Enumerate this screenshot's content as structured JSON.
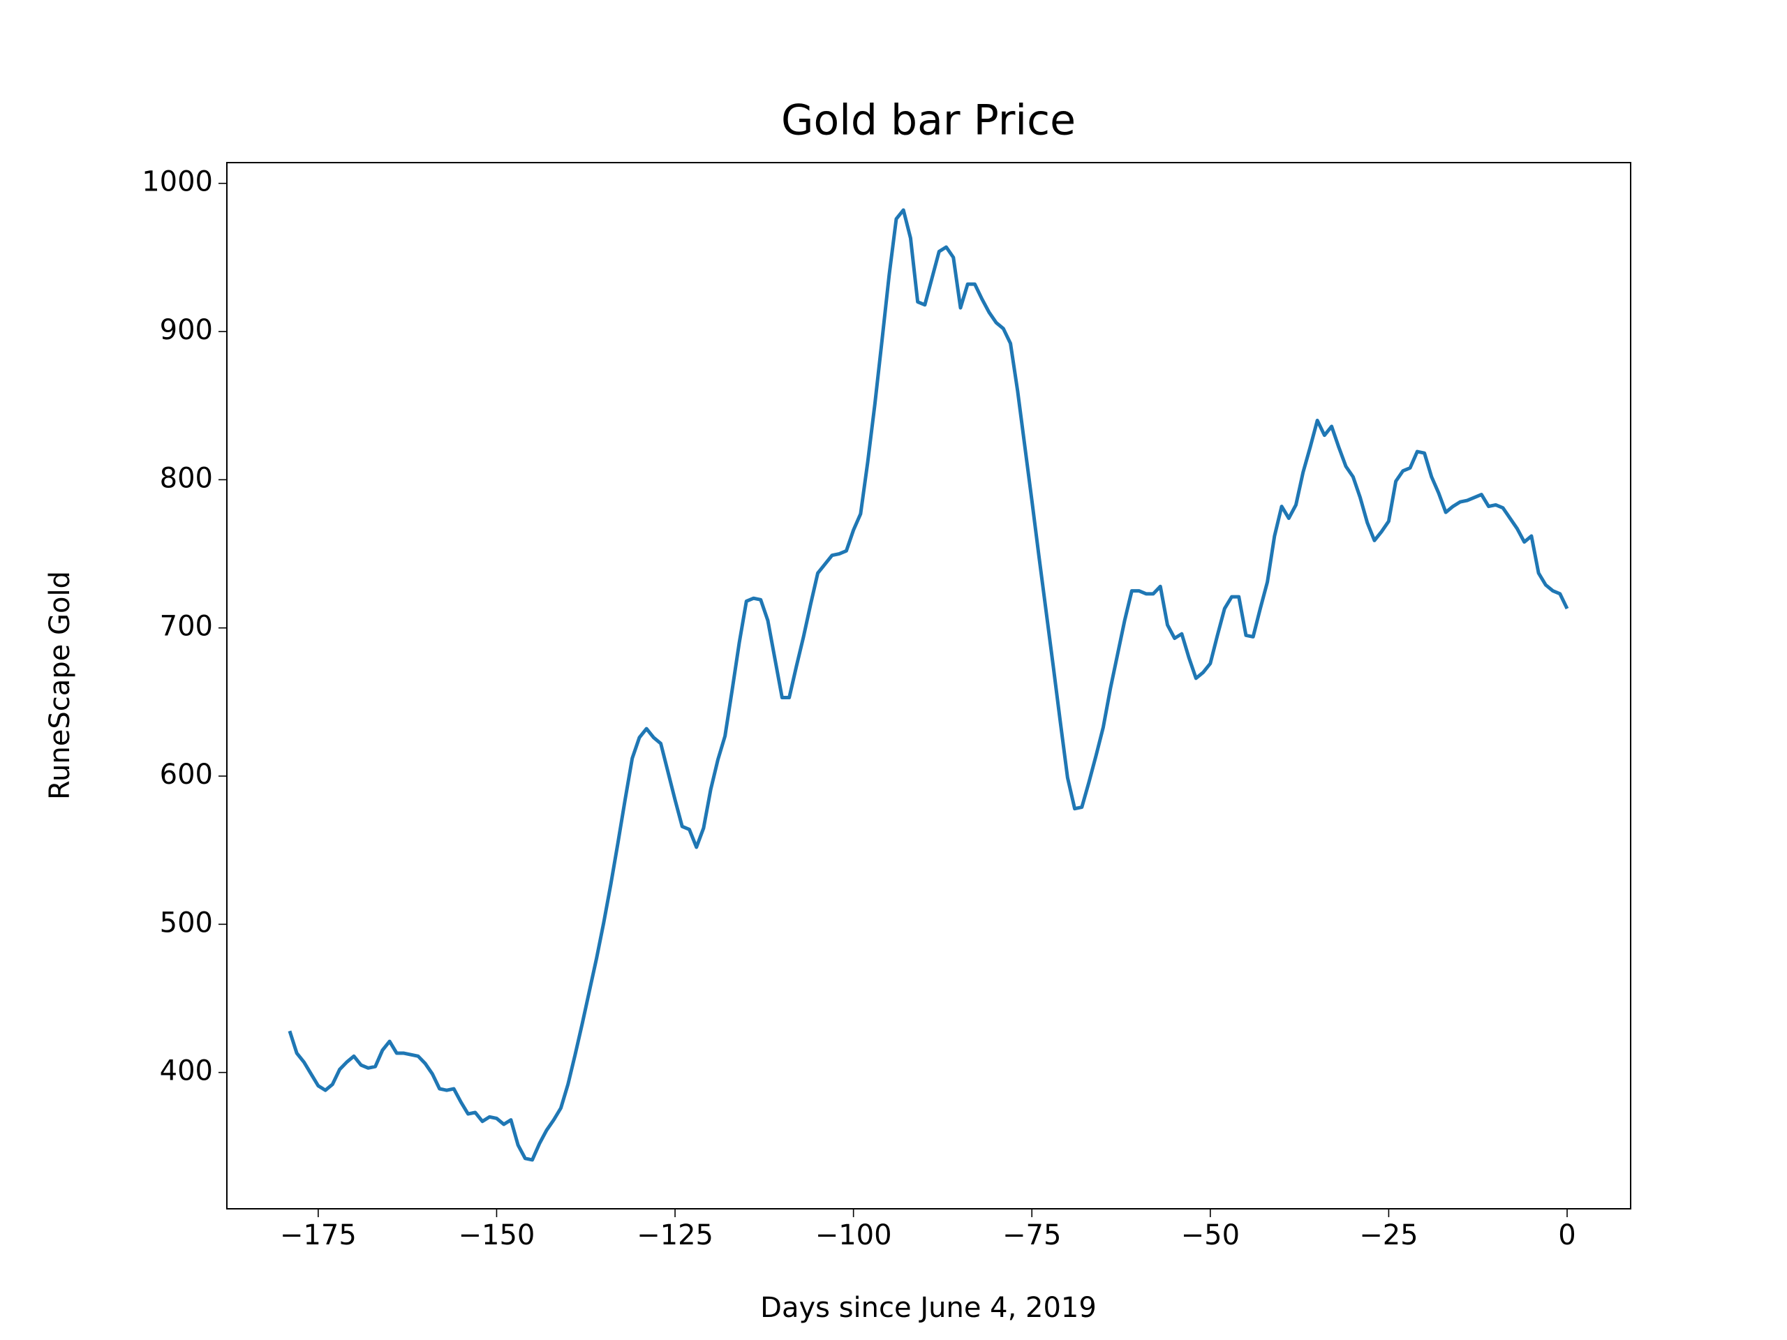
{
  "chart_data": {
    "type": "line",
    "title": "Gold bar Price",
    "x_label": "Days since June 4, 2019",
    "y_label": "RuneScape Gold",
    "x": [
      -179,
      -178,
      -177,
      -176,
      -175,
      -174,
      -173,
      -172,
      -171,
      -170,
      -169,
      -168,
      -167,
      -166,
      -165,
      -164,
      -163,
      -162,
      -161,
      -160,
      -159,
      -158,
      -157,
      -156,
      -155,
      -154,
      -153,
      -152,
      -151,
      -150,
      -149,
      -148,
      -147,
      -146,
      -145,
      -144,
      -143,
      -142,
      -141,
      -140,
      -139,
      -138,
      -137,
      -136,
      -135,
      -134,
      -133,
      -132,
      -131,
      -130,
      -129,
      -128,
      -127,
      -126,
      -125,
      -124,
      -123,
      -122,
      -121,
      -120,
      -119,
      -118,
      -117,
      -116,
      -115,
      -114,
      -113,
      -112,
      -111,
      -110,
      -109,
      -108,
      -107,
      -106,
      -105,
      -104,
      -103,
      -102,
      -101,
      -100,
      -99,
      -98,
      -97,
      -96,
      -95,
      -94,
      -93,
      -92,
      -91,
      -90,
      -89,
      -88,
      -87,
      -86,
      -85,
      -84,
      -83,
      -82,
      -81,
      -80,
      -79,
      -78,
      -77,
      -76,
      -75,
      -74,
      -73,
      -72,
      -71,
      -70,
      -69,
      -68,
      -67,
      -66,
      -65,
      -64,
      -63,
      -62,
      -61,
      -60,
      -59,
      -58,
      -57,
      -56,
      -55,
      -54,
      -53,
      -52,
      -51,
      -50,
      -49,
      -48,
      -47,
      -46,
      -45,
      -44,
      -43,
      -42,
      -41,
      -40,
      -39,
      -38,
      -37,
      -36,
      -35,
      -34,
      -33,
      -32,
      -31,
      -30,
      -29,
      -28,
      -27,
      -26,
      -25,
      -24,
      -23,
      -22,
      -21,
      -20,
      -19,
      -18,
      -17,
      -16,
      -15,
      -14,
      -13,
      -12,
      -11,
      -10,
      -9,
      -8,
      -7,
      -6,
      -5,
      -4,
      -3,
      -2,
      -1,
      0
    ],
    "series": [
      {
        "color": "#1f77b4",
        "values": [
          428,
          413,
          407,
          399,
          391,
          388,
          392,
          402,
          407,
          411,
          405,
          403,
          404,
          415,
          421,
          413,
          413,
          412,
          411,
          406,
          399,
          389,
          388,
          389,
          380,
          372,
          373,
          367,
          370,
          369,
          365,
          368,
          351,
          342,
          341,
          352,
          361,
          368,
          376,
          392,
          412,
          433,
          455,
          477,
          501,
          527,
          555,
          584,
          612,
          626,
          632,
          626,
          622,
          603,
          584,
          566,
          564,
          552,
          565,
          591,
          611,
          627,
          658,
          690,
          718,
          720,
          719,
          705,
          679,
          653,
          653,
          674,
          694,
          716,
          737,
          743,
          749,
          750,
          752,
          766,
          777,
          812,
          851,
          894,
          938,
          976,
          982,
          963,
          920,
          918,
          936,
          954,
          957,
          950,
          916,
          932,
          932,
          922,
          913,
          906,
          902,
          892,
          860,
          823,
          786,
          748,
          711,
          674,
          636,
          599,
          578,
          579,
          596,
          614,
          633,
          659,
          682,
          705,
          725,
          725,
          723,
          723,
          728,
          702,
          693,
          696,
          680,
          666,
          670,
          676,
          695,
          713,
          721,
          721,
          695,
          694,
          713,
          731,
          762,
          782,
          774,
          783,
          805,
          822,
          840,
          830,
          836,
          822,
          809,
          802,
          788,
          771,
          759,
          765,
          772,
          799,
          806,
          808,
          819,
          818,
          802,
          791,
          778,
          782,
          785,
          786,
          788,
          790,
          782,
          783,
          781,
          774,
          767,
          758,
          762,
          737,
          729,
          725,
          723,
          713
        ]
      }
    ],
    "xlim": [
      -187.8,
      8.9
    ],
    "ylim": [
      308,
      1014
    ],
    "xticks": [
      {
        "value": -175,
        "label": "−175"
      },
      {
        "value": -150,
        "label": "−150"
      },
      {
        "value": -125,
        "label": "−125"
      },
      {
        "value": -100,
        "label": "−100"
      },
      {
        "value": -75,
        "label": "−75"
      },
      {
        "value": -50,
        "label": "−50"
      },
      {
        "value": -25,
        "label": "−25"
      },
      0
    ],
    "yticks": [
      400,
      500,
      600,
      700,
      800,
      900,
      1000
    ]
  }
}
